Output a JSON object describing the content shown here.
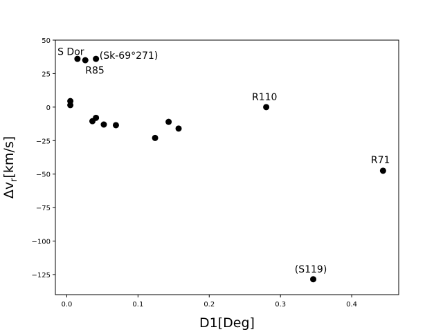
{
  "chart_data": {
    "type": "scatter",
    "title": "",
    "xlabel": "D1[Deg]",
    "ylabel": {
      "prefix": "Δv",
      "sub": "r",
      "suffix": "[km/s]"
    },
    "xlim": [
      -0.016,
      0.466
    ],
    "ylim": [
      -140,
      50
    ],
    "xticks": [
      0.0,
      0.1,
      0.2,
      0.3,
      0.4
    ],
    "xtick_labels": [
      "0.0",
      "0.1",
      "0.2",
      "0.3",
      "0.4"
    ],
    "yticks": [
      50,
      25,
      0,
      -25,
      -50,
      -75,
      -100,
      -125
    ],
    "ytick_labels": [
      "50",
      "25",
      "0",
      "−25",
      "−50",
      "−75",
      "−100",
      "−125"
    ],
    "grid": false,
    "marker_color": "#000000",
    "points": [
      {
        "x": 0.015,
        "y": 36
      },
      {
        "x": 0.026,
        "y": 35
      },
      {
        "x": 0.041,
        "y": 36
      },
      {
        "x": 0.005,
        "y": 4.5
      },
      {
        "x": 0.005,
        "y": 1.5
      },
      {
        "x": 0.036,
        "y": -10.5
      },
      {
        "x": 0.041,
        "y": -8
      },
      {
        "x": 0.052,
        "y": -13
      },
      {
        "x": 0.069,
        "y": -13.5
      },
      {
        "x": 0.124,
        "y": -23
      },
      {
        "x": 0.143,
        "y": -11
      },
      {
        "x": 0.157,
        "y": -16
      },
      {
        "x": 0.28,
        "y": 0
      },
      {
        "x": 0.444,
        "y": -47.5
      },
      {
        "x": 0.346,
        "y": -128.5
      }
    ],
    "annotations": [
      {
        "text": "S Dor",
        "x": -0.013,
        "y": 39
      },
      {
        "text": "(Sk-69°271)",
        "x": 0.046,
        "y": 36
      },
      {
        "text": "R85",
        "x": 0.026,
        "y": 25
      },
      {
        "text": "R110",
        "x": 0.26,
        "y": 5
      },
      {
        "text": "R71",
        "x": 0.427,
        "y": -42
      },
      {
        "text": "(S119)",
        "x": 0.32,
        "y": -123.5
      }
    ]
  }
}
